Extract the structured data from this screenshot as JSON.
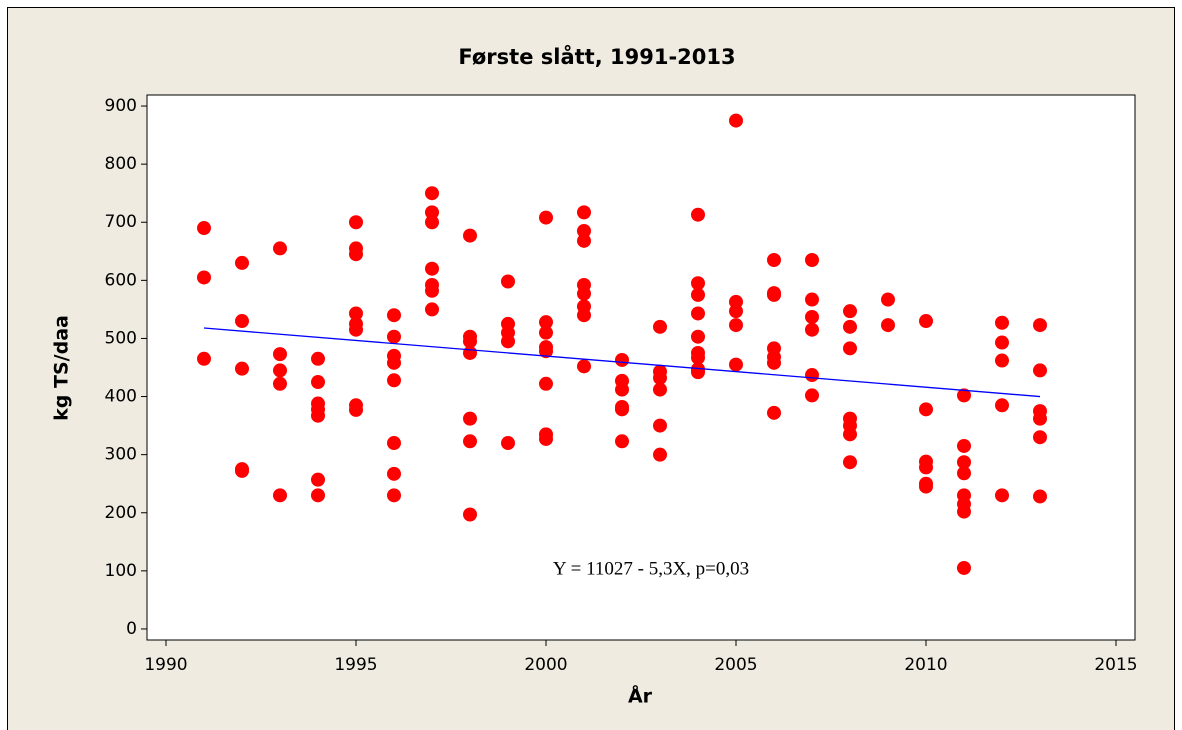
{
  "chart_data": {
    "type": "scatter",
    "title": "Første slått, 1991-2013",
    "x_label": "År",
    "y_label": "kg TS/daa",
    "annotation": "Y = 11027 - 5,3X, p=0,03",
    "color": "#ff0000",
    "x": [
      1991,
      1991,
      1991,
      1992,
      1992,
      1992,
      1992,
      1992,
      1993,
      1993,
      1993,
      1993,
      1993,
      1994,
      1994,
      1994,
      1994,
      1994,
      1994,
      1994,
      1995,
      1995,
      1995,
      1995,
      1995,
      1995,
      1995,
      1995,
      1996,
      1996,
      1996,
      1996,
      1996,
      1996,
      1996,
      1996,
      1997,
      1997,
      1997,
      1997,
      1997,
      1997,
      1997,
      1998,
      1998,
      1998,
      1998,
      1998,
      1998,
      1998,
      1999,
      1999,
      1999,
      1999,
      1999,
      2000,
      2000,
      2000,
      2000,
      2000,
      2000,
      2000,
      2000,
      2001,
      2001,
      2001,
      2001,
      2001,
      2001,
      2001,
      2001,
      2002,
      2002,
      2002,
      2002,
      2002,
      2002,
      2003,
      2003,
      2003,
      2003,
      2003,
      2003,
      2004,
      2004,
      2004,
      2004,
      2004,
      2004,
      2004,
      2004,
      2004,
      2005,
      2005,
      2005,
      2005,
      2005,
      2006,
      2006,
      2006,
      2006,
      2006,
      2006,
      2006,
      2007,
      2007,
      2007,
      2007,
      2007,
      2007,
      2008,
      2008,
      2008,
      2008,
      2008,
      2008,
      2008,
      2009,
      2009,
      2010,
      2010,
      2010,
      2010,
      2010,
      2010,
      2011,
      2011,
      2011,
      2011,
      2011,
      2011,
      2011,
      2011,
      2012,
      2012,
      2012,
      2012,
      2012,
      2013,
      2013,
      2013,
      2013,
      2013,
      2013
    ],
    "values": [
      690,
      605,
      465,
      630,
      530,
      448,
      275,
      272,
      655,
      473,
      445,
      422,
      230,
      465,
      425,
      388,
      378,
      367,
      257,
      230,
      700,
      655,
      645,
      543,
      525,
      515,
      385,
      377,
      540,
      503,
      470,
      458,
      428,
      320,
      267,
      230,
      750,
      717,
      700,
      620,
      592,
      582,
      550,
      677,
      503,
      495,
      475,
      362,
      323,
      197,
      598,
      525,
      510,
      495,
      320,
      708,
      528,
      510,
      485,
      478,
      422,
      335,
      327,
      717,
      685,
      668,
      592,
      577,
      555,
      540,
      452,
      463,
      427,
      412,
      382,
      378,
      323,
      520,
      443,
      432,
      412,
      350,
      300,
      713,
      595,
      575,
      543,
      503,
      475,
      467,
      447,
      442,
      875,
      563,
      547,
      523,
      455,
      635,
      578,
      575,
      483,
      468,
      458,
      372,
      635,
      567,
      537,
      515,
      437,
      402,
      547,
      520,
      483,
      362,
      350,
      335,
      287,
      567,
      523,
      530,
      378,
      288,
      278,
      250,
      245,
      402,
      315,
      287,
      268,
      230,
      215,
      202,
      105,
      527,
      493,
      462,
      385,
      230,
      523,
      445,
      375,
      362,
      330,
      228
    ],
    "fit_line": {
      "x": [
        1991,
        2013
      ],
      "y": [
        518,
        400
      ],
      "color": "#0000ff"
    },
    "xlim": [
      1989.5,
      2015.5
    ],
    "xticks": [
      1990,
      1995,
      2000,
      2005,
      2010,
      2015
    ],
    "ylim": [
      -19,
      919
    ],
    "yticks": [
      0,
      100,
      200,
      300,
      400,
      500,
      600,
      700,
      800,
      900
    ]
  }
}
